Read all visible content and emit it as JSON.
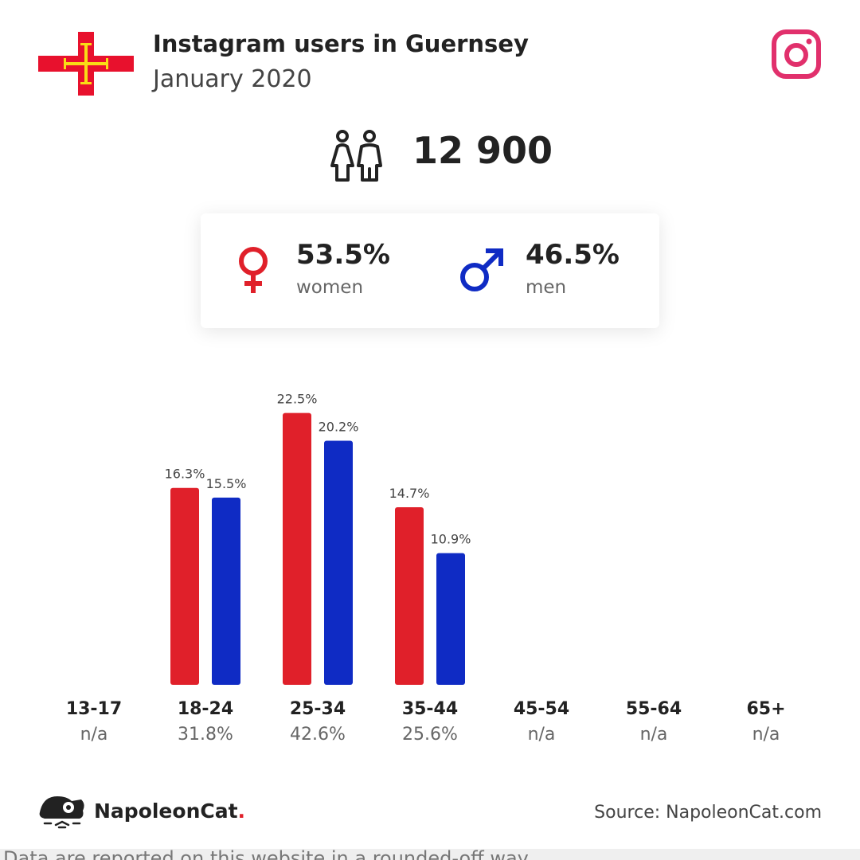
{
  "header": {
    "title": "Instagram users in Guernsey",
    "subtitle": "January 2020"
  },
  "total_users": "12 900",
  "gender": {
    "women_pct": "53.5%",
    "women_label": "women",
    "men_pct": "46.5%",
    "men_label": "men"
  },
  "colors": {
    "women": "#e0202a",
    "men": "#0f2bc4",
    "flag_red": "#e8112d",
    "flag_cross": "#f9dd16",
    "instagram": "#e1306c"
  },
  "chart_data": {
    "type": "bar",
    "categories": [
      "13-17",
      "18-24",
      "25-34",
      "35-44",
      "45-54",
      "55-64",
      "65+"
    ],
    "category_totals": [
      "n/a",
      "31.8%",
      "42.6%",
      "25.6%",
      "n/a",
      "n/a",
      "n/a"
    ],
    "series": [
      {
        "values": [
          null,
          16.3,
          22.5,
          14.7,
          null,
          null,
          null
        ],
        "labels": [
          "",
          "16.3%",
          "22.5%",
          "14.7%",
          "",
          "",
          ""
        ]
      },
      {
        "values": [
          null,
          15.5,
          20.2,
          10.9,
          null,
          null,
          null
        ],
        "labels": [
          "",
          "15.5%",
          "20.2%",
          "10.9%",
          "",
          "",
          ""
        ]
      }
    ],
    "ylim": [
      0,
      23.2
    ],
    "grid": false
  },
  "footer": {
    "brand_name": "NapoleonCat",
    "brand_dot": ".",
    "source": "Source: NapoleonCat.com",
    "footnote": "Data are reported on this website in a rounded-off way"
  },
  "icons": {
    "flag": "guernsey-flag-icon",
    "instagram": "instagram-icon",
    "users": "users-icon",
    "female": "female-symbol-icon",
    "male": "male-symbol-icon",
    "brand": "napoleoncat-logo-icon"
  }
}
